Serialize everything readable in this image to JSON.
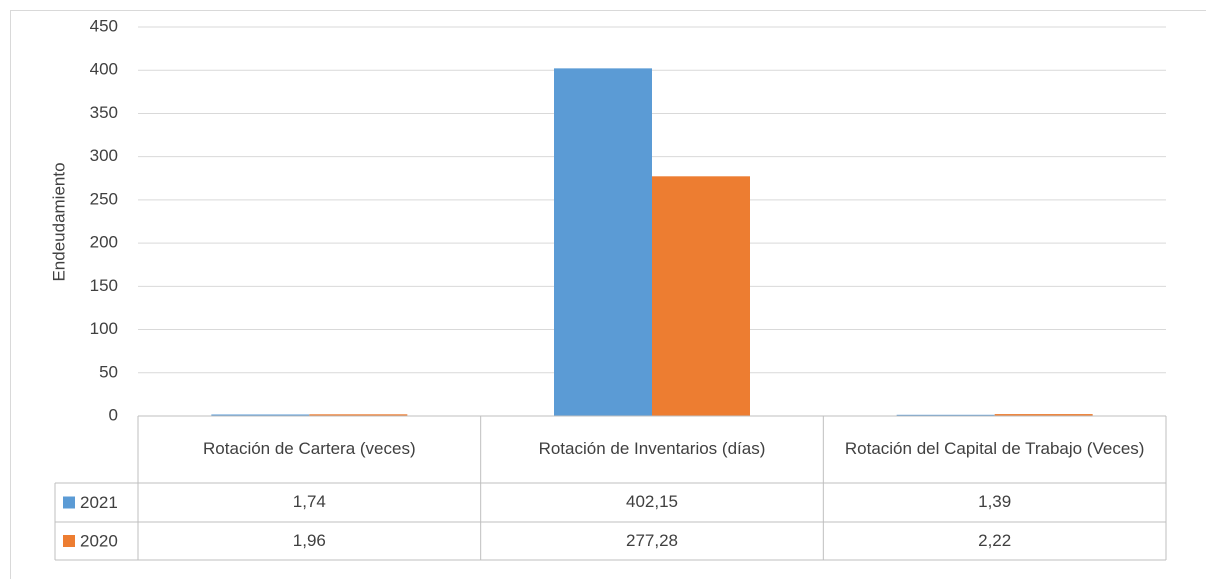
{
  "chart_data": {
    "type": "bar",
    "ylabel": "Endeudamiento",
    "categories": [
      "Rotación de Cartera (veces)",
      "Rotación de Inventarios (días)",
      "Rotación del Capital de Trabajo (Veces)"
    ],
    "series": [
      {
        "name": "2021",
        "color": "#5b9bd5",
        "values": [
          1.74,
          402.15,
          1.39
        ],
        "value_labels": [
          "1,74",
          "402,15",
          "1,39"
        ]
      },
      {
        "name": "2020",
        "color": "#ed7d31",
        "values": [
          1.96,
          277.28,
          2.22
        ],
        "value_labels": [
          "1,96",
          "277,28",
          "2,22"
        ]
      }
    ],
    "ylim": [
      0,
      450
    ],
    "yticks": [
      0,
      50,
      100,
      150,
      200,
      250,
      300,
      350,
      400,
      450
    ],
    "grid": true
  }
}
